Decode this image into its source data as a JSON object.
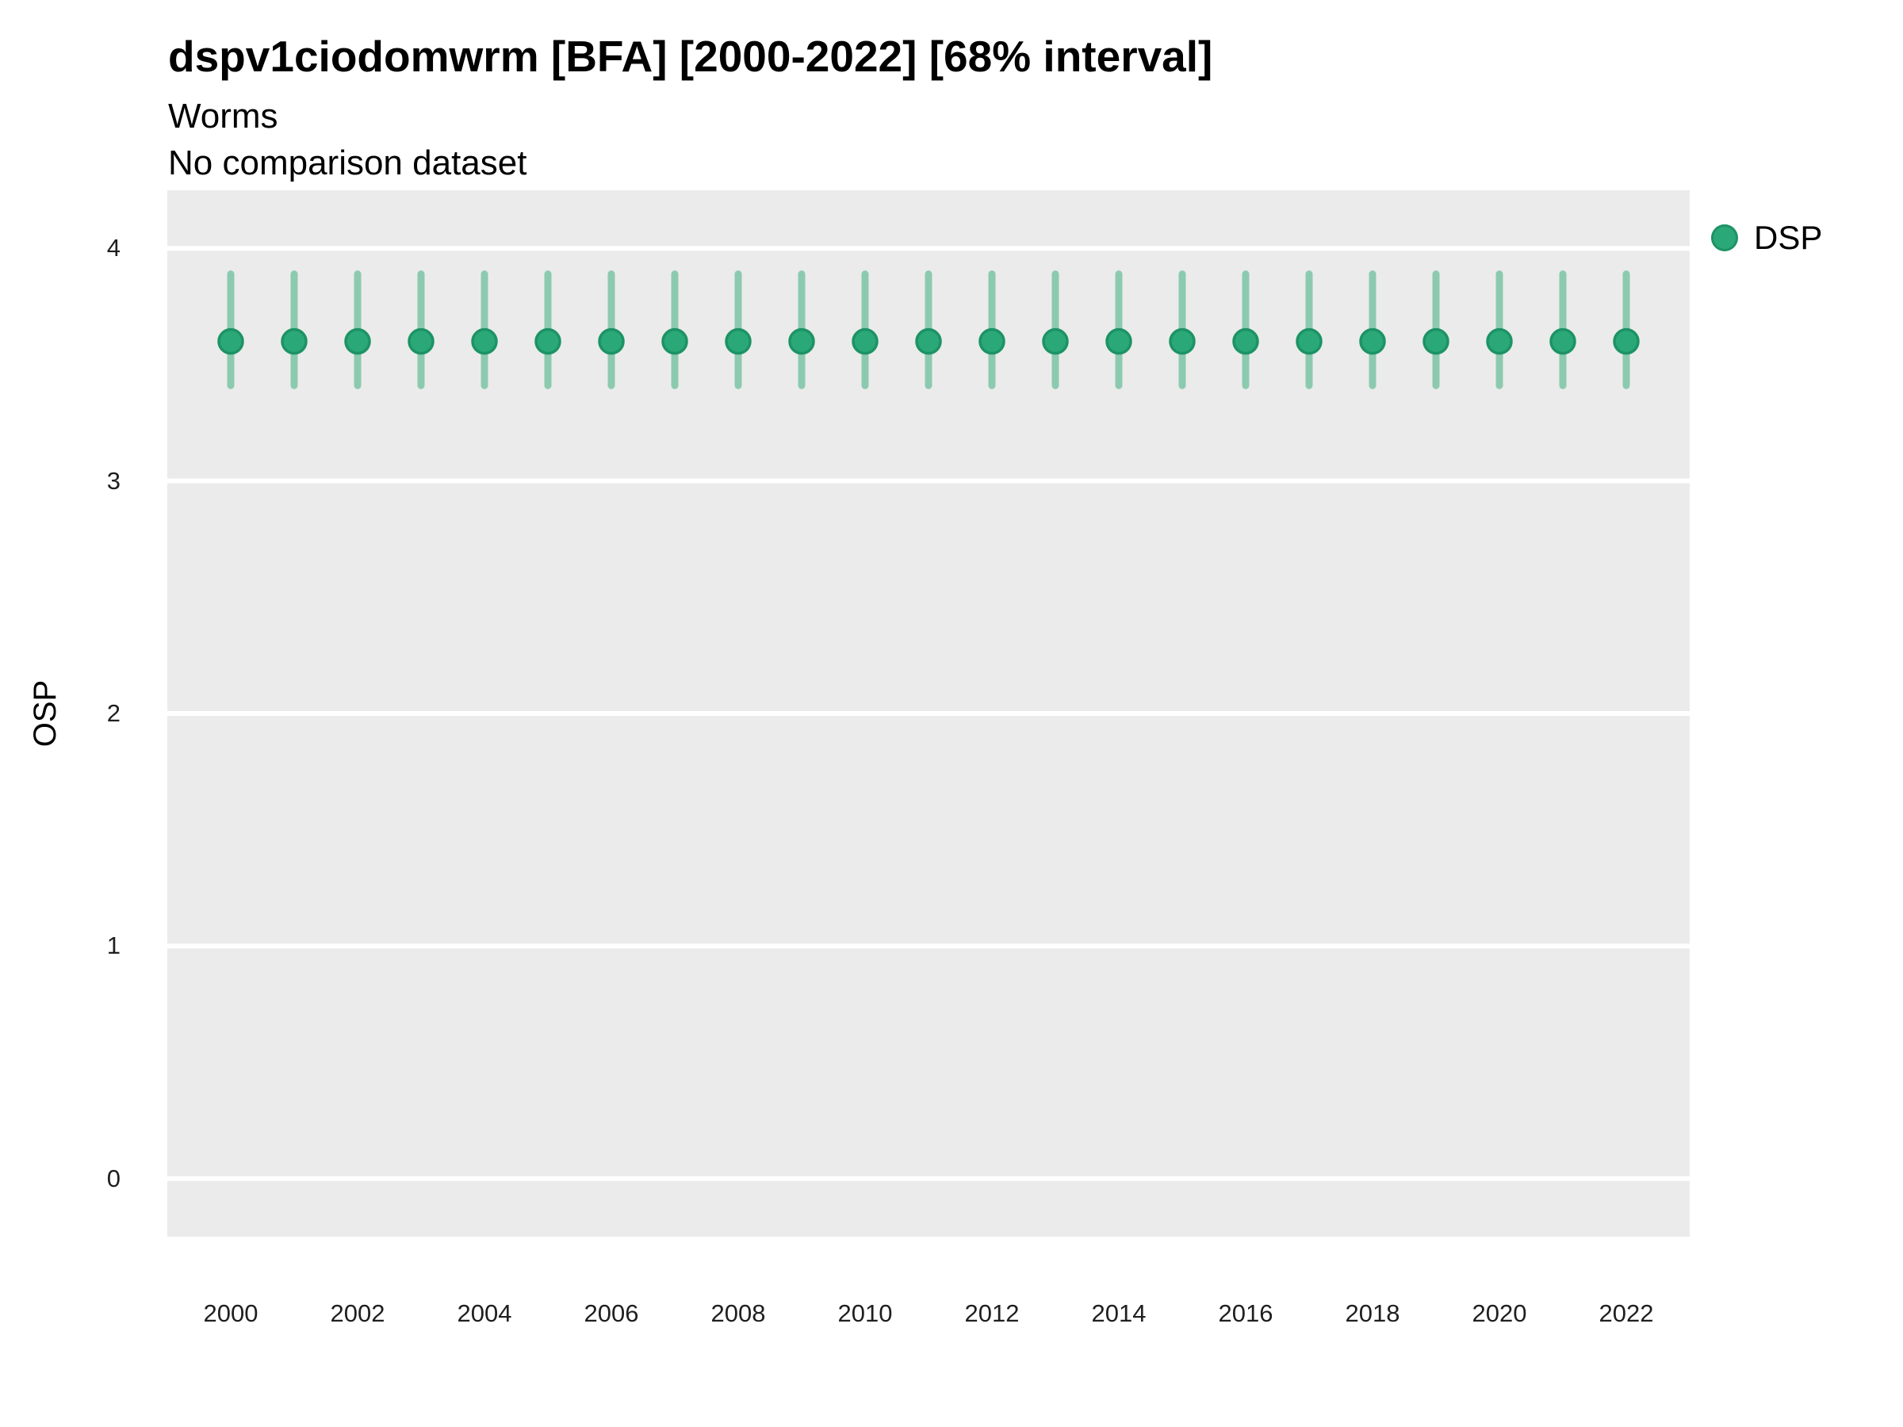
{
  "chart_data": {
    "type": "scatter",
    "title": "dspv1ciodomwrm [BFA] [2000-2022] [68% interval]",
    "subtitle": "Worms",
    "comparison_note": "No comparison dataset",
    "xlabel": "",
    "ylabel": "OSP",
    "interval": "68%",
    "xlim": [
      1999,
      2023
    ],
    "ylim": [
      -0.25,
      4.25
    ],
    "xticks": [
      2000,
      2002,
      2004,
      2006,
      2008,
      2010,
      2012,
      2014,
      2016,
      2018,
      2020,
      2022
    ],
    "yticks": [
      0,
      1,
      2,
      3,
      4
    ],
    "grid": "horizontal major gridlines, white on gray panel",
    "legend": {
      "position": "right",
      "entries": [
        {
          "label": "DSP",
          "marker": "circle",
          "color": "#2ba878"
        }
      ]
    },
    "series": [
      {
        "name": "DSP",
        "x": [
          2000,
          2001,
          2002,
          2003,
          2004,
          2005,
          2006,
          2007,
          2008,
          2009,
          2010,
          2011,
          2012,
          2013,
          2014,
          2015,
          2016,
          2017,
          2018,
          2019,
          2020,
          2021,
          2022
        ],
        "y": [
          3.6,
          3.6,
          3.6,
          3.6,
          3.6,
          3.6,
          3.6,
          3.6,
          3.6,
          3.6,
          3.6,
          3.6,
          3.6,
          3.6,
          3.6,
          3.6,
          3.6,
          3.6,
          3.6,
          3.6,
          3.6,
          3.6,
          3.6
        ],
        "y_lo": [
          3.4,
          3.4,
          3.4,
          3.4,
          3.4,
          3.4,
          3.4,
          3.4,
          3.4,
          3.4,
          3.4,
          3.4,
          3.4,
          3.4,
          3.4,
          3.4,
          3.4,
          3.4,
          3.4,
          3.4,
          3.4,
          3.4,
          3.4
        ],
        "y_hi": [
          3.9,
          3.9,
          3.9,
          3.9,
          3.9,
          3.9,
          3.9,
          3.9,
          3.9,
          3.9,
          3.9,
          3.9,
          3.9,
          3.9,
          3.9,
          3.9,
          3.9,
          3.9,
          3.9,
          3.9,
          3.9,
          3.9,
          3.9
        ]
      }
    ],
    "colors": {
      "point_fill": "#2ba878",
      "point_stroke": "#1d9365",
      "interval_bar": "#8ccab0",
      "panel_background": "#ebebeb",
      "gridline": "#ffffff",
      "title_text": "#000000",
      "tick_text": "#1f1f1f"
    }
  }
}
